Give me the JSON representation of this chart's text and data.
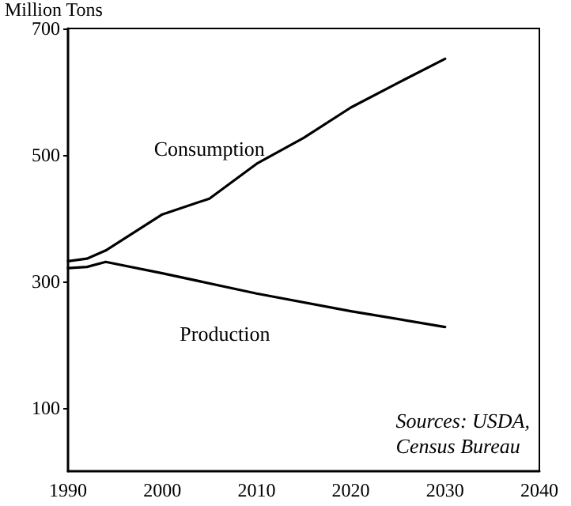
{
  "chart_data": {
    "type": "line",
    "ylabel": "Million Tons",
    "x": [
      1990,
      1992,
      1994,
      2000,
      2005,
      2010,
      2015,
      2020,
      2025,
      2030
    ],
    "series": [
      {
        "name": "Consumption",
        "color": "#000000",
        "values": [
          332,
          336,
          349,
          406,
          431,
          486,
          527,
          575,
          614,
          652
        ]
      },
      {
        "name": "Production",
        "color": "#000000",
        "x": [
          1990,
          1992,
          1994,
          2000,
          2010,
          2020,
          2030
        ],
        "values": [
          321,
          323,
          331,
          313,
          281,
          253,
          228
        ]
      }
    ],
    "xlim": [
      1990,
      2040
    ],
    "xticks": [
      1990,
      2000,
      2010,
      2020,
      2030,
      2040
    ],
    "ylim": [
      0,
      700
    ],
    "yticks": [
      100,
      300,
      500,
      700
    ],
    "annotations": [
      "Sources: USDA,\nCensus Bureau"
    ],
    "grid": false,
    "legend": false,
    "marker": "none",
    "line_style": "solid"
  }
}
